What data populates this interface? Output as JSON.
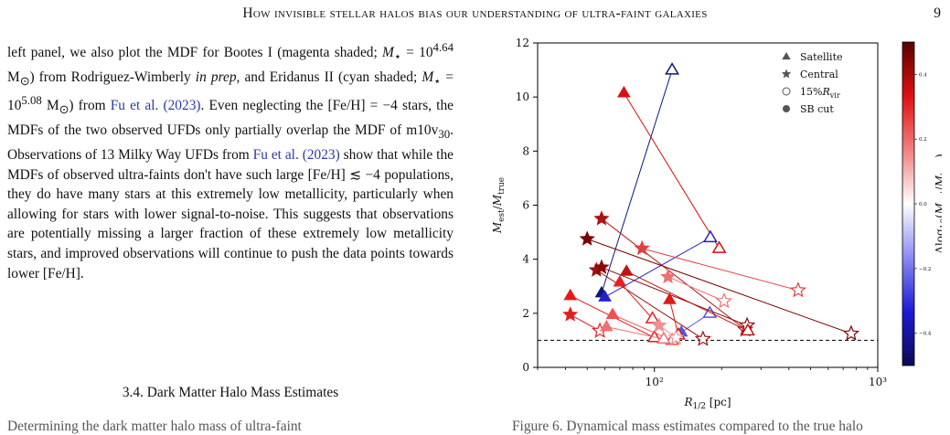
{
  "header": {
    "title": "How invisible stellar halos bias our understanding of ultra-faint galaxies",
    "page_number": "9"
  },
  "body_text": {
    "p1_a": "left panel, we also plot the MDF for Bootes I (magenta shaded; ",
    "p1_mass1": "M",
    "p1_mass1_sub": "⋆",
    "p1_eq1": " = 10",
    "p1_exp1": "4.64",
    "p1_unit1": " M",
    "p1_sun1": "⊙",
    "p1_b": ") from Rodriguez-Wimberly ",
    "p1_inprep": "in prep",
    "p1_c": ", and Eridanus II (cyan shaded; ",
    "p1_mass2": "M",
    "p1_mass2_sub": "⋆",
    "p1_eq2": " = 10",
    "p1_exp2": "5.08",
    "p1_unit2": " M",
    "p1_sun2": "⊙",
    "p1_d": ") from ",
    "cite1": "Fu et al. (2023)",
    "p1_e": ". Even neglecting the [Fe/H] = −4 stars, the MDFs of the two observed UFDs only partially overlap the MDF of m10v",
    "p1_sub30": "30",
    "p1_f": ". Observations of 13 Milky Way UFDs from ",
    "cite2": "Fu et al. (2023)",
    "p1_g": " show that while the MDFs of observed ultra-faints don't have such large [Fe/H] ≲ −4 populations, they do have many stars at this extremely low metallicity, particularly when allowing for stars with lower signal-to-noise. This suggests that observations are potentially missing a larger fraction of these extremely low metallicity stars, and improved observations will continue to push the data points towards lower [Fe/H]."
  },
  "section": {
    "heading": "3.4. Dark Matter Halo Mass Estimates"
  },
  "cutoff_line": "Determining the dark matter halo mass of ultra-faint",
  "caption_cutoff": "Figure 6. Dynamical mass estimates compared to the true halo",
  "chart_data": {
    "type": "scatter",
    "xlabel": "R1/2 [pc]",
    "ylabel": "Mest/Mtrue",
    "xscale": "log",
    "xlim": [
      30,
      1000
    ],
    "ylim": [
      0,
      12
    ],
    "xticks": [
      "10²",
      "10³"
    ],
    "yticks": [
      0,
      2,
      4,
      6,
      8,
      10,
      12
    ],
    "reference_line": {
      "y": 1,
      "style": "dashed",
      "color": "#000000"
    },
    "legend": {
      "placement": "top-right",
      "entries": [
        {
          "label": "Satellite",
          "marker": "triangle-filled"
        },
        {
          "label": "Central",
          "marker": "star-filled"
        },
        {
          "label": "15%Rvir",
          "marker": "circle-open"
        },
        {
          "label": "SB cut",
          "marker": "circle-filled"
        }
      ]
    },
    "colorbar": {
      "label": "Δlog10(Mest/Mtrue)",
      "range": [
        -0.5,
        0.5
      ],
      "ticks": [
        "0.4",
        "0.2",
        "0.0",
        "−0.2",
        "−0.4"
      ],
      "cmap": [
        "#0b0b55",
        "#1b1bd6",
        "#8a8af0",
        "#ffffff",
        "#f08080",
        "#e01010",
        "#5a0000"
      ]
    },
    "pairs": [
      {
        "marker": "triangle",
        "filled": [
          58,
          2.75
        ],
        "open": [
          120,
          11.0
        ],
        "color": "#0a1a78"
      },
      {
        "marker": "triangle",
        "filled": [
          73,
          10.15
        ],
        "open": [
          195,
          4.4
        ],
        "color": "#d81010"
      },
      {
        "marker": "triangle",
        "filled": [
          60,
          2.6
        ],
        "open": [
          178,
          4.8
        ],
        "color": "#2222cc"
      },
      {
        "marker": "triangle",
        "filled": [
          132,
          1.3
        ],
        "open": [
          177,
          2.0
        ],
        "color": "#5555dd"
      },
      {
        "marker": "star",
        "filled": [
          58,
          5.5
        ],
        "open": [
          255,
          1.4
        ],
        "color": "#b01010"
      },
      {
        "marker": "star",
        "filled": [
          50,
          4.75
        ],
        "open": [
          760,
          1.25
        ],
        "color": "#7a0000"
      },
      {
        "marker": "star",
        "filled": [
          88,
          4.4
        ],
        "open": [
          440,
          2.85
        ],
        "color": "#e04040"
      },
      {
        "marker": "star",
        "filled": [
          55,
          3.6
        ],
        "open": [
          165,
          1.05
        ],
        "color": "#a01010"
      },
      {
        "marker": "star",
        "filled": [
          58,
          3.7
        ],
        "open": [
          260,
          1.55
        ],
        "color": "#8a0a0a"
      },
      {
        "marker": "star",
        "filled": [
          115,
          3.35
        ],
        "open": [
          205,
          2.45
        ],
        "color": "#f07070"
      },
      {
        "marker": "triangle",
        "filled": [
          75,
          3.55
        ],
        "open": [
          262,
          1.35
        ],
        "color": "#c01515"
      },
      {
        "marker": "triangle",
        "filled": [
          70,
          3.15
        ],
        "open": [
          98,
          1.8
        ],
        "color": "#e82020"
      },
      {
        "marker": "triangle",
        "filled": [
          42,
          2.65
        ],
        "open": [
          100,
          1.1
        ],
        "color": "#e81818"
      },
      {
        "marker": "star",
        "filled": [
          42,
          1.95
        ],
        "open": [
          57,
          1.35
        ],
        "color": "#e02020"
      },
      {
        "marker": "triangle",
        "filled": [
          117,
          2.5
        ],
        "open": [
          128,
          1.2
        ],
        "color": "#e01818"
      },
      {
        "marker": "triangle",
        "filled": [
          65,
          1.95
        ],
        "open": [
          120,
          1.0
        ],
        "color": "#f05050"
      },
      {
        "marker": "triangle",
        "filled": [
          61,
          1.5
        ],
        "open": [
          110,
          1.05
        ],
        "color": "#f07070"
      },
      {
        "marker": "star",
        "filled": [
          105,
          1.55
        ],
        "open": [
          125,
          1.1
        ],
        "color": "#f09090"
      }
    ]
  }
}
